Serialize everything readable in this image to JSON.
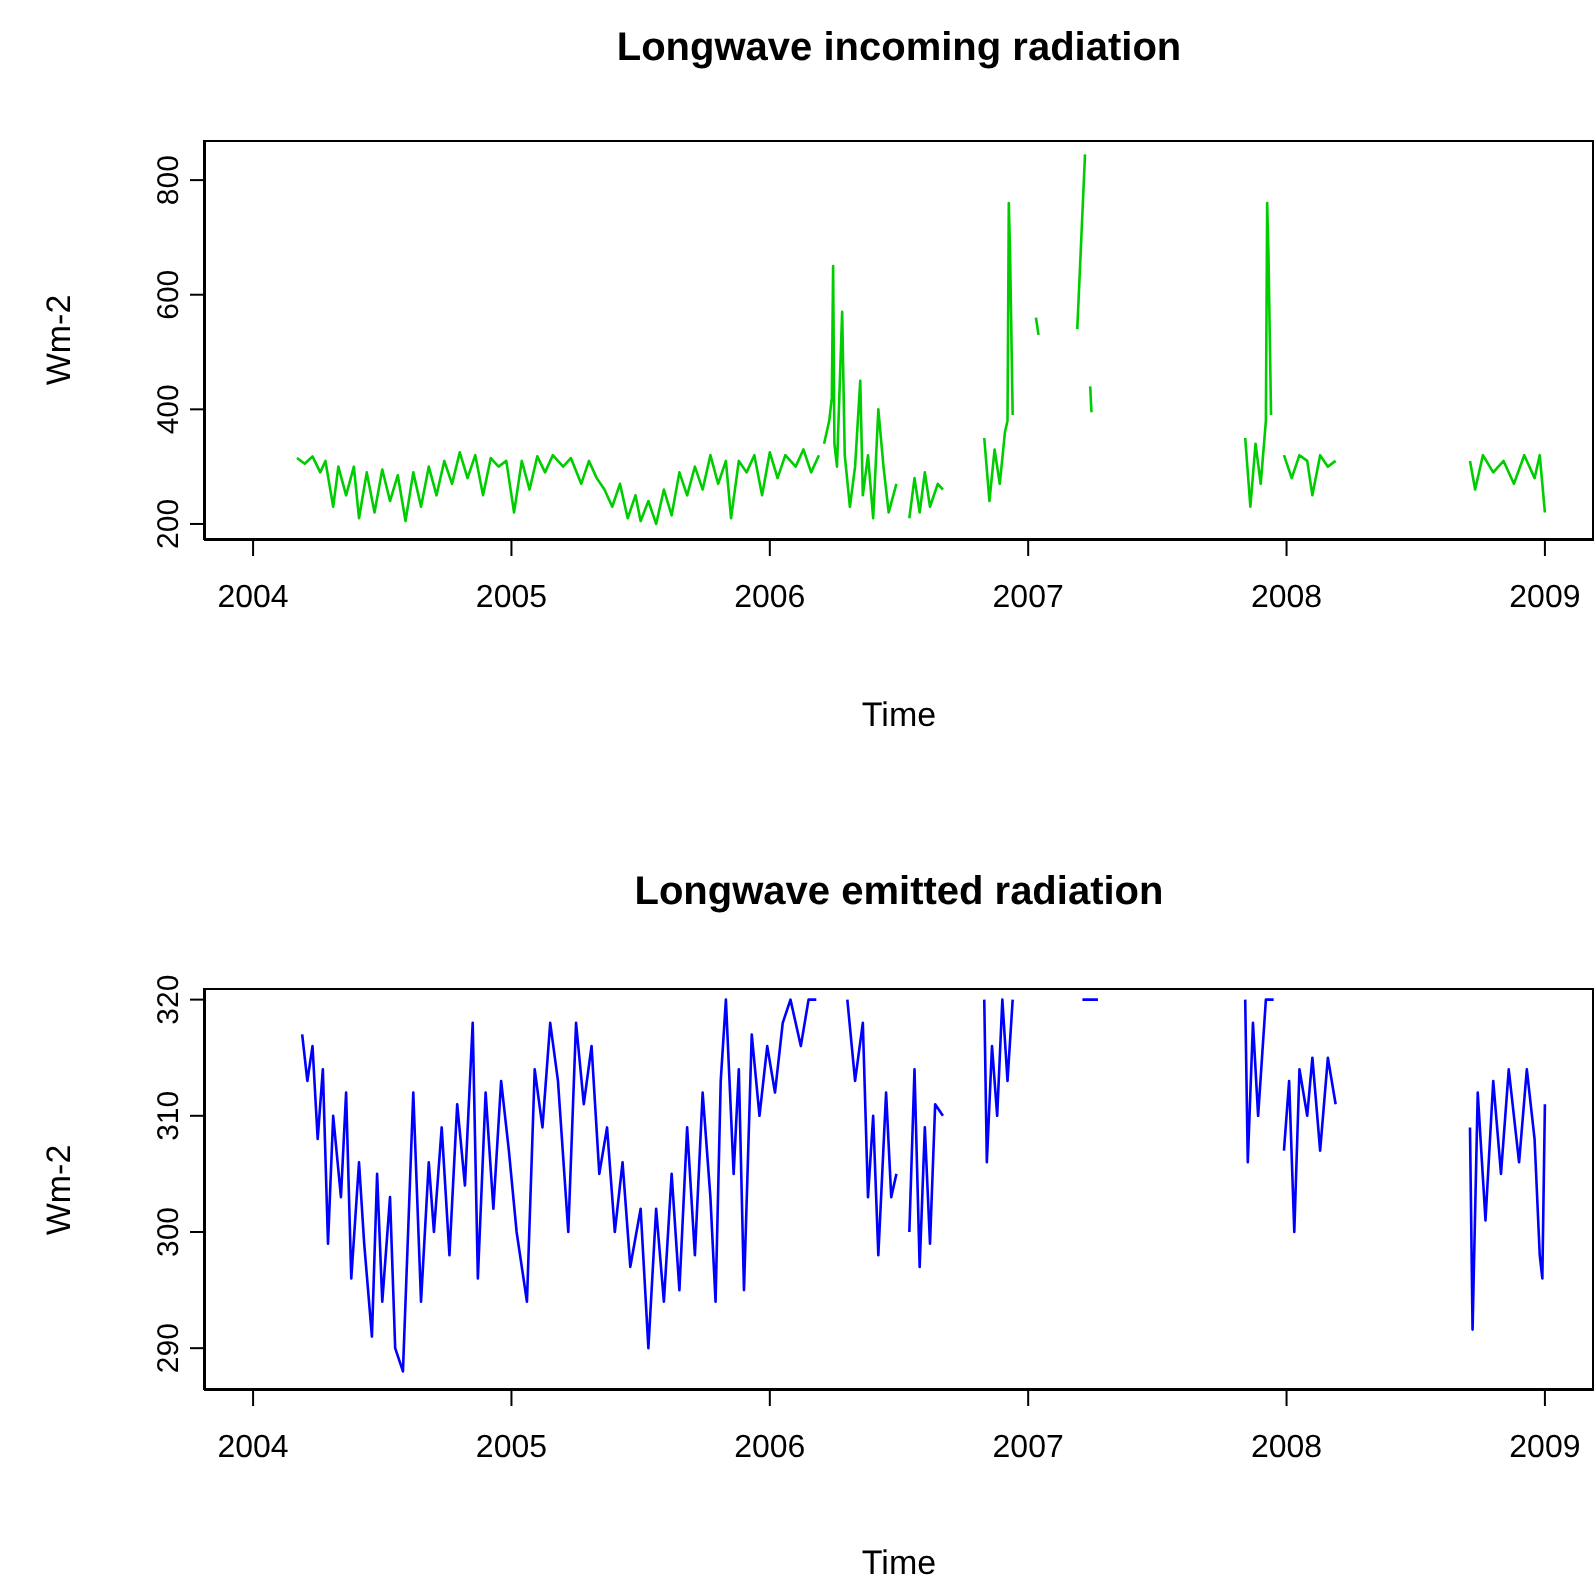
{
  "chart_data": [
    {
      "type": "line",
      "title": "Longwave incoming radiation",
      "xlabel": "Time",
      "ylabel": "Wm-2",
      "xlim": [
        2003.81,
        2009.19
      ],
      "xticks": [
        2004,
        2005,
        2006,
        2007,
        2008,
        2009
      ],
      "ylim": [
        172,
        870
      ],
      "yticks": [
        200,
        400,
        600,
        800
      ],
      "x": [
        2004.17,
        2004.2,
        2004.23,
        2004.26,
        2004.28,
        2004.31,
        2004.33,
        2004.36,
        2004.39,
        2004.41,
        2004.44,
        2004.47,
        2004.5,
        2004.53,
        2004.56,
        2004.59,
        2004.62,
        2004.65,
        2004.68,
        2004.71,
        2004.74,
        2004.77,
        2004.8,
        2004.83,
        2004.86,
        2004.89,
        2004.92,
        2004.95,
        2004.98,
        2005.01,
        2005.04,
        2005.07,
        2005.1,
        2005.13,
        2005.16,
        2005.2,
        2005.23,
        2005.27,
        2005.3,
        2005.33,
        2005.36,
        2005.39,
        2005.42,
        2005.45,
        2005.48,
        2005.5,
        2005.53,
        2005.56,
        2005.59,
        2005.62,
        2005.65,
        2005.68,
        2005.71,
        2005.74,
        2005.77,
        2005.8,
        2005.83,
        2005.85,
        2005.88,
        2005.91,
        2005.94,
        2005.97,
        2006.0,
        2006.03,
        2006.06,
        2006.1,
        2006.13,
        2006.16,
        2006.19,
        2006.2,
        2006.21,
        2006.23,
        2006.24,
        2006.245,
        2006.25,
        2006.26,
        2006.28,
        2006.29,
        2006.31,
        2006.33,
        2006.35,
        2006.36,
        2006.38,
        2006.4,
        2006.42,
        2006.44,
        2006.46,
        2006.49,
        2006.52,
        2006.54,
        2006.56,
        2006.58,
        2006.6,
        2006.62,
        2006.65,
        2006.67,
        2006.75,
        2006.83,
        2006.85,
        2006.87,
        2006.89,
        2006.91,
        2006.92,
        2006.925,
        2006.93,
        2006.94,
        2007.0,
        2007.03,
        2007.04,
        2007.1,
        2007.19,
        2007.22,
        2007.23,
        2007.24,
        2007.245,
        2007.5,
        2007.84,
        2007.86,
        2007.88,
        2007.9,
        2007.92,
        2007.925,
        2007.93,
        2007.94,
        2007.97,
        2007.99,
        2008.02,
        2008.05,
        2008.08,
        2008.1,
        2008.13,
        2008.16,
        2008.19,
        2008.4,
        2008.71,
        2008.73,
        2008.76,
        2008.8,
        2008.84,
        2008.88,
        2008.92,
        2008.96,
        2008.98,
        2009.0
      ],
      "series": [
        {
          "color": "#00cd00",
          "values": [
            315,
            305,
            318,
            290,
            310,
            230,
            300,
            250,
            300,
            210,
            290,
            220,
            295,
            240,
            285,
            205,
            290,
            230,
            300,
            250,
            310,
            270,
            325,
            280,
            320,
            250,
            315,
            300,
            310,
            220,
            310,
            260,
            318,
            290,
            320,
            300,
            315,
            270,
            310,
            280,
            260,
            230,
            270,
            210,
            250,
            205,
            240,
            200,
            260,
            215,
            290,
            250,
            300,
            260,
            320,
            270,
            310,
            210,
            310,
            290,
            320,
            250,
            325,
            280,
            320,
            300,
            330,
            290,
            320,
            null,
            340,
            380,
            420,
            650,
            340,
            300,
            570,
            320,
            230,
            300,
            450,
            250,
            320,
            210,
            400,
            300,
            220,
            270,
            null,
            210,
            280,
            220,
            290,
            230,
            270,
            260,
            null,
            350,
            240,
            330,
            270,
            360,
            380,
            760,
            670,
            390,
            null,
            560,
            530,
            null,
            540,
            845,
            null,
            440,
            395,
            null,
            350,
            230,
            340,
            270,
            380,
            760,
            670,
            390,
            null,
            320,
            280,
            320,
            310,
            250,
            320,
            300,
            310,
            null,
            310,
            260,
            320,
            290,
            310,
            270,
            320,
            280,
            320,
            220
          ]
        }
      ]
    },
    {
      "type": "line",
      "title": "Longwave emitted radiation",
      "xlabel": "Time",
      "ylabel": "Wm-2",
      "xlim": [
        2003.81,
        2009.19
      ],
      "xticks": [
        2004,
        2005,
        2006,
        2007,
        2008,
        2009
      ],
      "ylim": [
        286.4,
        321
      ],
      "yticks": [
        290,
        300,
        310,
        320
      ],
      "x": [
        2004.19,
        2004.21,
        2004.23,
        2004.25,
        2004.27,
        2004.29,
        2004.31,
        2004.34,
        2004.36,
        2004.38,
        2004.41,
        2004.43,
        2004.46,
        2004.48,
        2004.5,
        2004.53,
        2004.55,
        2004.58,
        2004.6,
        2004.62,
        2004.65,
        2004.68,
        2004.7,
        2004.73,
        2004.76,
        2004.79,
        2004.82,
        2004.85,
        2004.87,
        2004.9,
        2004.93,
        2004.96,
        2004.99,
        2005.02,
        2005.06,
        2005.09,
        2005.12,
        2005.15,
        2005.18,
        2005.22,
        2005.25,
        2005.28,
        2005.31,
        2005.34,
        2005.37,
        2005.4,
        2005.43,
        2005.46,
        2005.5,
        2005.53,
        2005.56,
        2005.59,
        2005.62,
        2005.65,
        2005.68,
        2005.71,
        2005.74,
        2005.77,
        2005.79,
        2005.81,
        2005.83,
        2005.86,
        2005.88,
        2005.9,
        2005.93,
        2005.96,
        2005.99,
        2006.02,
        2006.05,
        2006.08,
        2006.12,
        2006.15,
        2006.18,
        2006.25,
        2006.3,
        2006.33,
        2006.36,
        2006.38,
        2006.4,
        2006.42,
        2006.45,
        2006.47,
        2006.49,
        2006.51,
        2006.54,
        2006.56,
        2006.58,
        2006.6,
        2006.62,
        2006.64,
        2006.67,
        2006.75,
        2006.83,
        2006.84,
        2006.86,
        2006.88,
        2006.9,
        2006.92,
        2006.94,
        2007.1,
        2007.21,
        2007.27,
        2007.5,
        2007.84,
        2007.85,
        2007.87,
        2007.89,
        2007.92,
        2007.95,
        2007.97,
        2007.99,
        2008.01,
        2008.03,
        2008.05,
        2008.08,
        2008.1,
        2008.13,
        2008.16,
        2008.19,
        2008.4,
        2008.71,
        2008.72,
        2008.74,
        2008.77,
        2008.8,
        2008.83,
        2008.86,
        2008.9,
        2008.93,
        2008.96,
        2008.98,
        2008.99,
        2009.0
      ],
      "series": [
        {
          "color": "#0000ff",
          "values": [
            317,
            313,
            316,
            308,
            314,
            299,
            310,
            303,
            312,
            296,
            306,
            299,
            291,
            305,
            294,
            303,
            290,
            288,
            300,
            312,
            294,
            306,
            300,
            309,
            298,
            311,
            304,
            318,
            296,
            312,
            302,
            313,
            307,
            300,
            294,
            314,
            309,
            318,
            313,
            300,
            318,
            311,
            316,
            305,
            309,
            300,
            306,
            297,
            302,
            290,
            302,
            294,
            305,
            295,
            309,
            298,
            312,
            303,
            294,
            313,
            320,
            305,
            314,
            295,
            317,
            310,
            316,
            312,
            318,
            320,
            316,
            320,
            320,
            null,
            320,
            313,
            318,
            303,
            310,
            298,
            312,
            303,
            305,
            null,
            300,
            314,
            297,
            309,
            299,
            311,
            310,
            null,
            320,
            306,
            316,
            310,
            320,
            313,
            320,
            null,
            320,
            320,
            null,
            320,
            306,
            318,
            310,
            320,
            320,
            null,
            307,
            313,
            300,
            314,
            310,
            315,
            307,
            315,
            311,
            null,
            309,
            291.6,
            312,
            301,
            313,
            305,
            314,
            306,
            314,
            308,
            298,
            296,
            311
          ]
        }
      ]
    }
  ]
}
